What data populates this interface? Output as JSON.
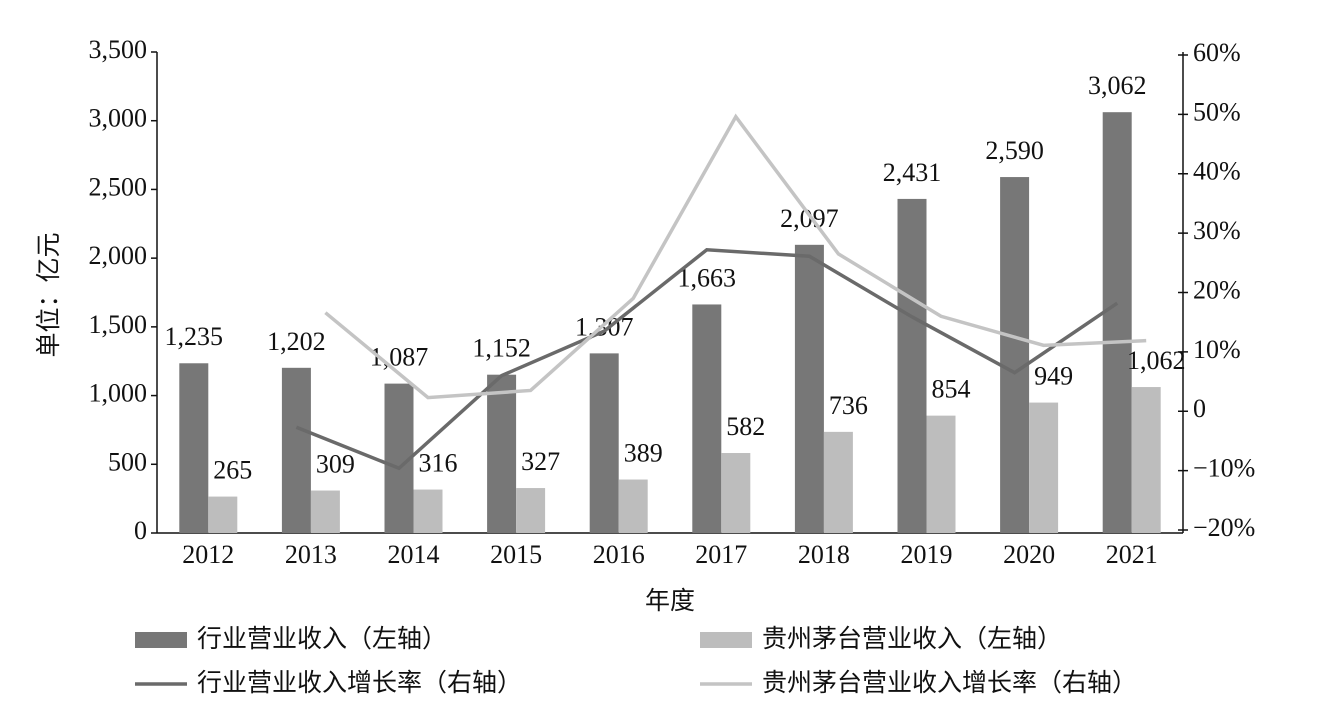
{
  "chart_data": {
    "type": "bar",
    "x_label": "年度",
    "y_label": "单位：亿元",
    "categories": [
      "2012",
      "2013",
      "2014",
      "2015",
      "2016",
      "2017",
      "2018",
      "2019",
      "2020",
      "2021"
    ],
    "series": [
      {
        "name": "行业营业收入（左轴）",
        "color": "#777777",
        "values": [
          1235,
          1202,
          1087,
          1152,
          1307,
          1663,
          2097,
          2431,
          2590,
          3062
        ],
        "value_labels": [
          "1,235",
          "1,202",
          "1,087",
          "1,152",
          "1,307",
          "1,663",
          "2,097",
          "2,431",
          "2,590",
          "3,062"
        ]
      },
      {
        "name": "贵州茅台营业收入（左轴）",
        "color": "#bdbdbd",
        "values": [
          265,
          309,
          316,
          327,
          389,
          582,
          736,
          854,
          949,
          1062
        ],
        "value_labels": [
          "265",
          "309",
          "316",
          "327",
          "389",
          "582",
          "736",
          "854",
          "949",
          "1,062"
        ]
      },
      {
        "name": "行业营业收入增长率（右轴）",
        "type": "line",
        "axis": "y2",
        "color": "#6a6a6a",
        "values": [
          null,
          -2.7,
          -9.6,
          6.0,
          13.5,
          27.2,
          26.1,
          15.9,
          6.5,
          18.2
        ]
      },
      {
        "name": "贵州茅台营业收入增长率（右轴）",
        "type": "line",
        "axis": "y2",
        "color": "#c4c4c4",
        "values": [
          null,
          16.6,
          2.3,
          3.5,
          19.0,
          49.6,
          26.5,
          16.0,
          11.1,
          11.9
        ]
      }
    ],
    "ylim": [
      0,
      3500
    ],
    "yticks": [
      0,
      500,
      {
        "value": 1000,
        "label": "1,000"
      },
      {
        "value": 1500,
        "label": "1,500"
      },
      {
        "value": 2000,
        "label": "2,000"
      },
      {
        "value": 2500,
        "label": "2,500"
      },
      {
        "value": 3000,
        "label": "3,000"
      },
      {
        "value": 3500,
        "label": "3,500"
      }
    ],
    "y2lim": [
      -20,
      60
    ],
    "y2ticks": [
      {
        "value": -20,
        "label": "−20%"
      },
      {
        "value": -10,
        "label": "−10%"
      },
      0,
      {
        "value": 10,
        "label": "10%"
      },
      {
        "value": 20,
        "label": "20%"
      },
      {
        "value": 30,
        "label": "30%"
      },
      {
        "value": 40,
        "label": "40%"
      },
      {
        "value": 50,
        "label": "50%"
      },
      {
        "value": 60,
        "label": "60%"
      }
    ],
    "legend": "bottom"
  }
}
